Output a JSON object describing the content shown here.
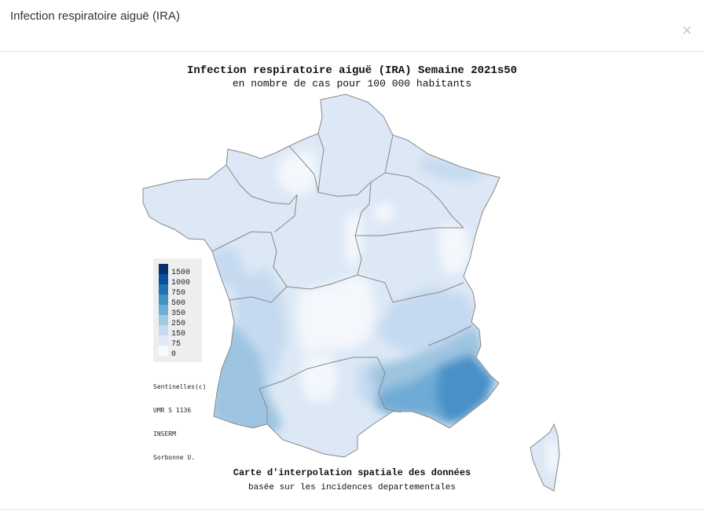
{
  "modal": {
    "title": "Infection respiratoire aiguë (IRA)",
    "close_label": "×"
  },
  "map": {
    "title": "Infection respiratoire aiguë (IRA) Semaine 2021s50",
    "subtitle": "en nombre de cas pour 100 000 habitants",
    "caption": "Carte d'interpolation spatiale des données",
    "caption_sub": "basée sur les incidences departementales",
    "credits": [
      "Sentinelles(c)",
      "UMR S 1136",
      "INSERM",
      "Sorbonne U."
    ]
  },
  "legend": {
    "items": [
      {
        "label": "1500",
        "color": "#08306b"
      },
      {
        "label": "1000",
        "color": "#08519c"
      },
      {
        "label": "750",
        "color": "#2171b5"
      },
      {
        "label": "500",
        "color": "#4292c6"
      },
      {
        "label": "350",
        "color": "#6baed6"
      },
      {
        "label": "250",
        "color": "#9ecae1"
      },
      {
        "label": "150",
        "color": "#c6dbef"
      },
      {
        "label": "75",
        "color": "#deebf7"
      },
      {
        "label": "0",
        "color": "#f7fbff"
      }
    ]
  },
  "colors": {
    "base": "#dce8f5",
    "very_low": "#f4f8fd",
    "medium": "#c5daf0",
    "high": "#9dc4e0",
    "higher": "#6eabd6",
    "highest": "#4690c8",
    "border": "#888888"
  }
}
